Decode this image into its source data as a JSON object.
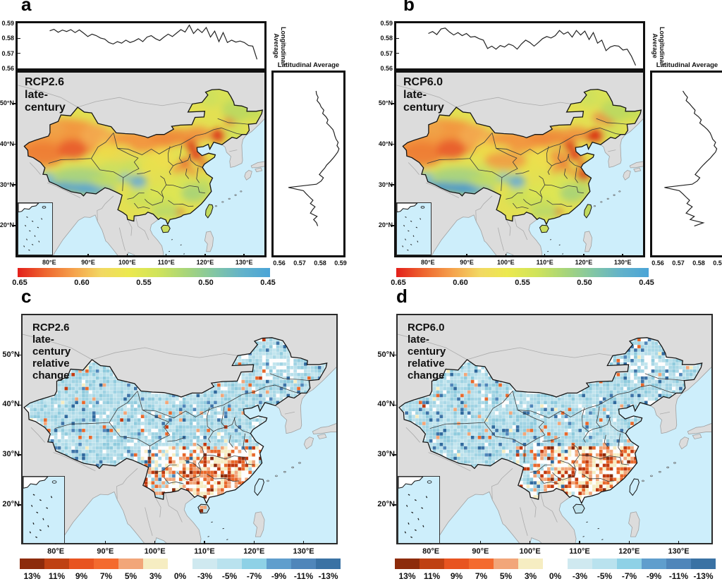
{
  "figure": {
    "background": "#ffffff"
  },
  "panels": [
    {
      "letter": "a",
      "map_title": "RCP2.6 late-century"
    },
    {
      "letter": "b",
      "map_title": "RCP6.0 late-century"
    },
    {
      "letter": "c",
      "map_title": "RCP2.6 late-century  relative change"
    },
    {
      "letter": "d",
      "map_title": "RCP6.0 late-century  relative change"
    }
  ],
  "marginal": {
    "top_label_line1": "Longitudinal",
    "top_label_line2": "Average",
    "right_title": "Latitudinal Average",
    "top_axis_ticks": [
      "0.59",
      "0.58",
      "0.57",
      "0.56"
    ],
    "top_axis_values": [
      0.59,
      0.58,
      0.57,
      0.56
    ],
    "right_axis_ticks": [
      "0.56",
      "0.57",
      "0.58",
      "0.59"
    ],
    "right_axis_values": [
      0.56,
      0.57,
      0.58,
      0.59
    ]
  },
  "map_axes": {
    "lat_ticks": [
      "50°N",
      "40°N",
      "30°N",
      "20°N"
    ],
    "lat_values": [
      50,
      40,
      30,
      20
    ],
    "lon_ticks": [
      "80°E",
      "90°E",
      "100°E",
      "110°E",
      "120°E",
      "130°E"
    ],
    "lon_values": [
      80,
      90,
      100,
      110,
      120,
      130
    ]
  },
  "colorbar_continuous": {
    "tick_labels": [
      "0.65",
      "0.60",
      "0.55",
      "0.50",
      "0.45"
    ],
    "gradient_stops": [
      "#e3201b",
      "#ee6730",
      "#f5a14c",
      "#f2d863",
      "#ece94f",
      "#cfe35b",
      "#a7d57a",
      "#82c6a4",
      "#62b2ca",
      "#4ba4d7"
    ]
  },
  "colorbar_discrete": {
    "labels": [
      "13%",
      "11%",
      "9%",
      "7%",
      "5%",
      "3%",
      "0%",
      "-3%",
      "-5%",
      "-7%",
      "-9%",
      "-11%",
      "-13%"
    ],
    "warm_colors": [
      "#8d2b0b",
      "#bf4112",
      "#e85420",
      "#f46a2e",
      "#f2a679",
      "#f6edc2"
    ],
    "cool_colors": [
      "#cfe9f0",
      "#b9e2ee",
      "#8ed1e6",
      "#5f9ecd",
      "#4f86ba",
      "#3a72a4"
    ]
  },
  "chart_data": [
    {
      "type": "line",
      "panel": "a",
      "name": "longitudinal_average",
      "ylim": [
        0.56,
        0.59
      ],
      "t_range": [
        0.13,
        0.97
      ],
      "values": [
        0.585,
        0.586,
        0.584,
        0.5855,
        0.5845,
        0.5858,
        0.5838,
        0.5856,
        0.5835,
        0.5812,
        0.5828,
        0.5818,
        0.5802,
        0.5795,
        0.5772,
        0.5762,
        0.5778,
        0.5768,
        0.5788,
        0.5772,
        0.5782,
        0.5798,
        0.5778,
        0.5808,
        0.5818,
        0.5798,
        0.5785,
        0.5808,
        0.5828,
        0.5812,
        0.5835,
        0.5858,
        0.5842,
        0.5888,
        0.5832,
        0.5862,
        0.5838,
        0.5872,
        0.5808,
        0.5848,
        0.5778,
        0.5838,
        0.5772,
        0.5788,
        0.5775,
        0.5782,
        0.5772,
        0.5752,
        0.5748,
        0.566
      ]
    },
    {
      "type": "line",
      "panel": "a",
      "name": "latitudinal_average",
      "xlim": [
        0.56,
        0.59
      ],
      "t_range": [
        0.1,
        0.84
      ],
      "values": [
        0.577,
        0.5772,
        0.578,
        0.5775,
        0.5788,
        0.5795,
        0.5808,
        0.5802,
        0.5818,
        0.5828,
        0.5822,
        0.5838,
        0.5852,
        0.5858,
        0.5862,
        0.5868,
        0.5878,
        0.5872,
        0.5882,
        0.5876,
        0.5864,
        0.5852,
        0.5838,
        0.5822,
        0.5812,
        0.5798,
        0.5786,
        0.5806,
        0.5795,
        0.5772,
        0.5635,
        0.5708,
        0.5722,
        0.5738,
        0.5755,
        0.5742,
        0.5765,
        0.5752,
        0.5742,
        0.5775,
        0.5758,
        0.5772,
        0.5778
      ]
    },
    {
      "type": "line",
      "panel": "b",
      "name": "longitudinal_average",
      "ylim": [
        0.56,
        0.59
      ],
      "t_range": [
        0.13,
        0.97
      ],
      "values": [
        0.5832,
        0.5845,
        0.5825,
        0.5862,
        0.5868,
        0.5842,
        0.5822,
        0.5838,
        0.5818,
        0.5832,
        0.5808,
        0.5812,
        0.5798,
        0.5788,
        0.5732,
        0.5748,
        0.5728,
        0.5752,
        0.5742,
        0.5762,
        0.5752,
        0.5728,
        0.5762,
        0.5788,
        0.5772,
        0.5748,
        0.5772,
        0.5798,
        0.5812,
        0.5802,
        0.5818,
        0.5852,
        0.5828,
        0.5842,
        0.5808,
        0.5852,
        0.5822,
        0.5848,
        0.5792,
        0.5838,
        0.5768,
        0.5788,
        0.5718,
        0.5742,
        0.5752,
        0.5748,
        0.5722,
        0.5728,
        0.5682,
        0.562
      ]
    },
    {
      "type": "line",
      "panel": "b",
      "name": "latitudinal_average",
      "xlim": [
        0.56,
        0.59
      ],
      "t_range": [
        0.1,
        0.84
      ],
      "values": [
        0.5712,
        0.5722,
        0.5735,
        0.5728,
        0.5745,
        0.5758,
        0.5772,
        0.5768,
        0.5788,
        0.5802,
        0.5795,
        0.5815,
        0.5832,
        0.5845,
        0.5852,
        0.5858,
        0.5872,
        0.5865,
        0.5878,
        0.5872,
        0.5858,
        0.5845,
        0.5828,
        0.5812,
        0.5798,
        0.5785,
        0.5772,
        0.5795,
        0.5782,
        0.5758,
        0.5622,
        0.5695,
        0.5712,
        0.5728,
        0.5745,
        0.5732,
        0.5758,
        0.5742,
        0.5728,
        0.5768,
        0.5748,
        0.5812,
        0.5768
      ]
    }
  ]
}
